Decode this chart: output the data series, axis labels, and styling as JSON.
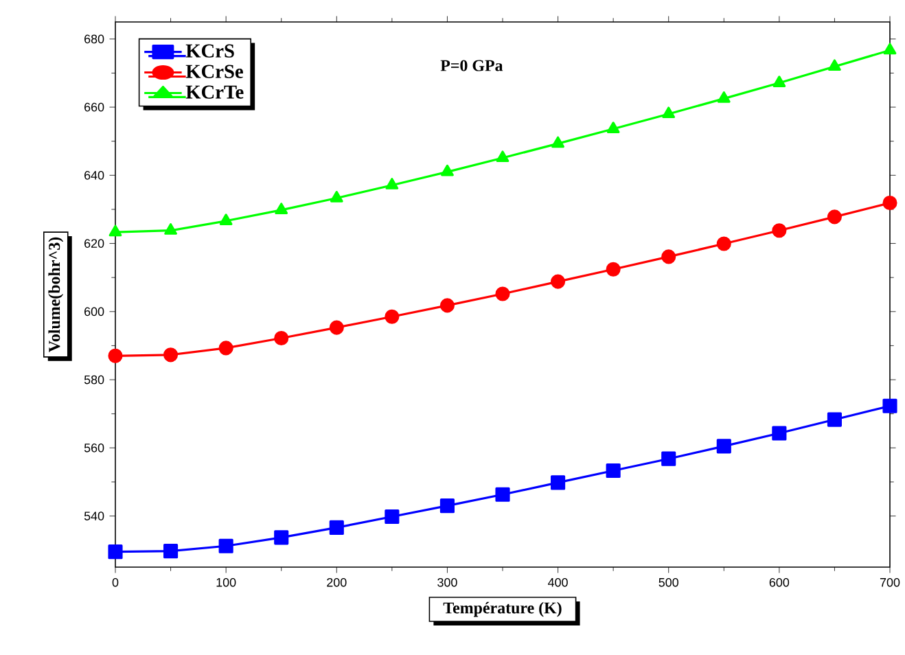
{
  "chart_data": {
    "type": "line",
    "xlabel": "Température (K)",
    "ylabel": "Volume(bohr^3)",
    "annotations": [
      "P=0 GPa"
    ],
    "x": [
      0,
      50,
      100,
      150,
      200,
      250,
      300,
      350,
      400,
      450,
      500,
      550,
      600,
      650,
      700
    ],
    "series": [
      {
        "name": "KCrS",
        "color": "#0000ff",
        "marker": "square",
        "values": [
          529.5,
          529.7,
          531.2,
          533.7,
          536.6,
          539.8,
          543,
          546.3,
          549.8,
          553.3,
          556.8,
          560.5,
          564.3,
          568.3,
          572.3
        ]
      },
      {
        "name": "KCrSe",
        "color": "#ff0000",
        "marker": "circle",
        "values": [
          587,
          587.3,
          589.3,
          592.2,
          595.3,
          598.5,
          601.8,
          605.2,
          608.8,
          612.4,
          616.1,
          619.9,
          623.8,
          627.8,
          631.9
        ]
      },
      {
        "name": "KCrTe",
        "color": "#00ff00",
        "marker": "triangle",
        "values": [
          623.3,
          623.8,
          626.6,
          629.8,
          633.3,
          637.1,
          641,
          645.1,
          649.3,
          653.6,
          658,
          662.5,
          667.1,
          671.9,
          676.7
        ]
      }
    ],
    "xlim": [
      0,
      700
    ],
    "ylim": [
      525,
      685
    ],
    "xticks": [
      0,
      100,
      200,
      300,
      400,
      500,
      600,
      700
    ],
    "yticks": [
      540,
      560,
      580,
      600,
      620,
      640,
      660,
      680
    ],
    "legend": "top left",
    "grid": false,
    "line_style": "solid"
  }
}
